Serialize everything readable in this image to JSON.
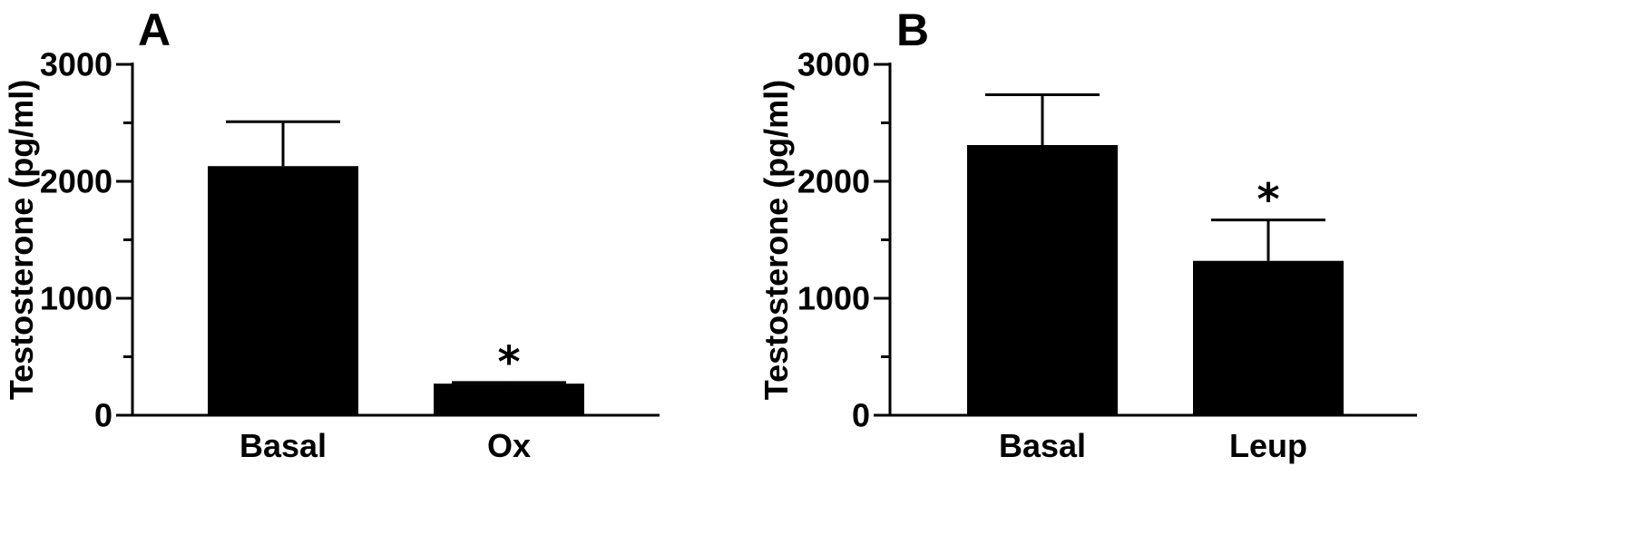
{
  "chart_data": [
    {
      "type": "bar",
      "panel_label": "A",
      "title": "",
      "xlabel": "",
      "ylabel": "Testosterone (pg/ml)",
      "ylim": [
        0,
        3000
      ],
      "yticks": [
        0,
        1000,
        2000,
        3000
      ],
      "ytick_labels": [
        "0",
        "1000",
        "2000",
        "3000"
      ],
      "minor_yticks": [
        500,
        1500,
        2500
      ],
      "categories": [
        "Basal",
        "Ox"
      ],
      "values": [
        2130,
        270
      ],
      "errors": [
        380,
        10
      ],
      "annotations": [
        "",
        "*"
      ],
      "bar_color": "#000000",
      "grid": false
    },
    {
      "type": "bar",
      "panel_label": "B",
      "title": "",
      "xlabel": "",
      "ylabel": "Testosterone (pg/ml)",
      "ylim": [
        0,
        3000
      ],
      "yticks": [
        0,
        1000,
        2000,
        3000
      ],
      "ytick_labels": [
        "0",
        "1000",
        "2000",
        "3000"
      ],
      "minor_yticks": [
        500,
        1500,
        2500
      ],
      "categories": [
        "Basal",
        "Leup"
      ],
      "values": [
        2310,
        1320
      ],
      "errors": [
        430,
        350
      ],
      "annotations": [
        "",
        "*"
      ],
      "bar_color": "#000000",
      "grid": false
    }
  ]
}
